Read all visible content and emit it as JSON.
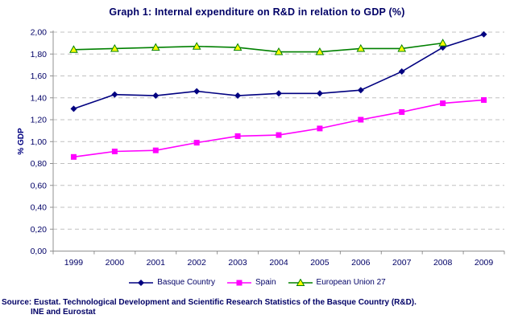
{
  "title": "Graph 1: Internal expenditure on R&D in relation to GDP (%)",
  "chart_data": {
    "type": "line",
    "title": "Graph 1: Internal expenditure on R&D in relation to GDP (%)",
    "xlabel": "",
    "ylabel": "% GDP",
    "categories": [
      "1999",
      "2000",
      "2001",
      "2002",
      "2003",
      "2004",
      "2005",
      "2006",
      "2007",
      "2008",
      "2009"
    ],
    "ylim": [
      0,
      2.0
    ],
    "ytick_step": 0.2,
    "decimal_separator": ",",
    "grid": "horizontal-dashed",
    "legend_position": "bottom",
    "series": [
      {
        "name": "Basque Country",
        "color": "#000080",
        "marker": "diamond",
        "marker_fill": "#000080",
        "values": [
          1.3,
          1.43,
          1.42,
          1.46,
          1.42,
          1.44,
          1.44,
          1.47,
          1.64,
          1.86,
          1.98
        ]
      },
      {
        "name": "Spain",
        "color": "#FF00FF",
        "marker": "square",
        "marker_fill": "#FF00FF",
        "values": [
          0.86,
          0.91,
          0.92,
          0.99,
          1.05,
          1.06,
          1.12,
          1.2,
          1.27,
          1.35,
          1.38
        ]
      },
      {
        "name": "European Union 27",
        "color": "#008000",
        "marker": "triangle",
        "marker_fill": "#FFFF00",
        "values": [
          1.84,
          1.85,
          1.86,
          1.87,
          1.86,
          1.82,
          1.82,
          1.85,
          1.85,
          1.9,
          null
        ]
      }
    ]
  },
  "source": {
    "line1": "Source: Eustat. Technological Development and Scientific Research Statistics of the Basque Country (R&D).",
    "line2": "INE and Eurostat"
  },
  "colors": {
    "title_text": "#000066",
    "axis_text": "#000066",
    "axis_line": "#909090",
    "gridline": "#c0c0c0",
    "background": "#ffffff"
  }
}
